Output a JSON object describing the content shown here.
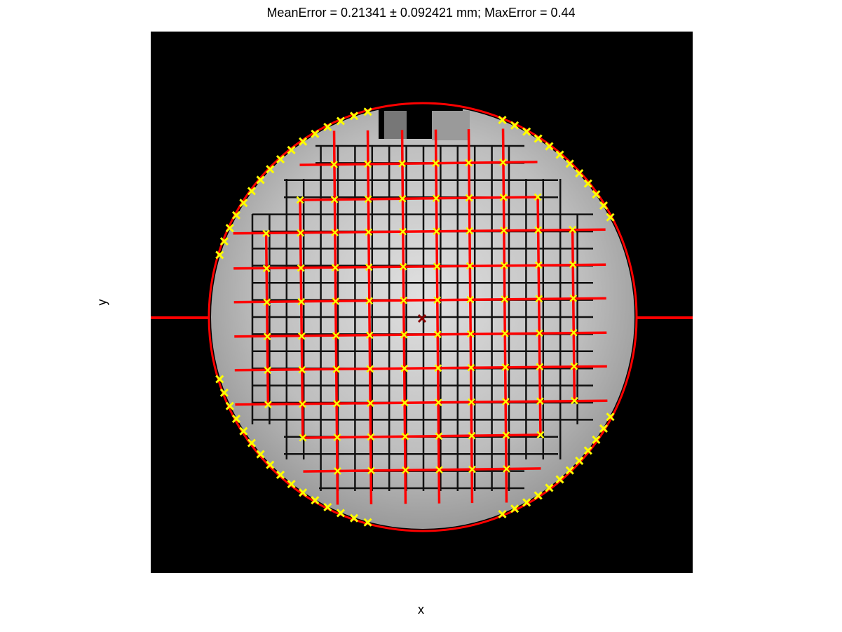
{
  "figure": {
    "title": "MeanError = 0.21341 ± 0.092421 mm; MaxError = 0.44",
    "xlabel": "x",
    "ylabel": "y"
  },
  "colors": {
    "background": "#000000",
    "phantom": "#c8c8c8",
    "grid_lines": "#111111",
    "fit_lines": "#ff0000",
    "markers": "#ffff00",
    "center_marker": "#8b0000"
  },
  "chart_data": {
    "type": "scatter",
    "title": "MeanError = 0.21341 ± 0.092421 mm; MaxError = 0.44",
    "xlabel": "x",
    "ylabel": "y",
    "axes_visible": false,
    "image": "grayscale MR image of a circular grid phantom",
    "overlays": [
      "red fitted circle outlining the phantom",
      "red horizontal and vertical fitted grid lines",
      "yellow x markers at detected grid intersections and boundary points",
      "dark red x marker at the phantom center"
    ],
    "grid_marker_columns": 10,
    "grid_marker_rows": 9
  }
}
